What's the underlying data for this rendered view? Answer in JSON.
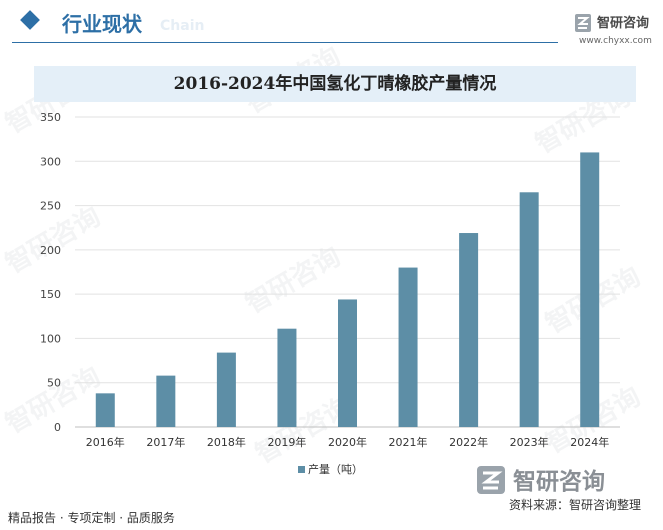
{
  "header": {
    "section_title": "行业现状",
    "section_watermark": "Chain",
    "logo_name": "智研咨询",
    "logo_url": "www.chyxx.com",
    "watermark_text": "智研咨询"
  },
  "footer": {
    "left_text": "精品报告 · 专项定制 · 品质服务",
    "logo_name": "智研咨询",
    "source": "资料来源：智研咨询整理"
  },
  "colors": {
    "bar": "#5d8ea6",
    "accent": "#2d6fa6",
    "title_band": "#e4eff8"
  },
  "chart_data": {
    "type": "bar",
    "title": "2016-2024年中国氢化丁晴橡胶产量情况",
    "categories": [
      "2016年",
      "2017年",
      "2018年",
      "2019年",
      "2020年",
      "2021年",
      "2022年",
      "2023年",
      "2024年"
    ],
    "series": [
      {
        "name": "产量（吨）",
        "values": [
          38,
          58,
          84,
          111,
          144,
          180,
          219,
          265,
          310
        ]
      }
    ],
    "ylim": [
      0,
      350
    ],
    "yticks": [
      0,
      50,
      100,
      150,
      200,
      250,
      300,
      350
    ],
    "grid": true,
    "legend_position": "bottom-center"
  }
}
